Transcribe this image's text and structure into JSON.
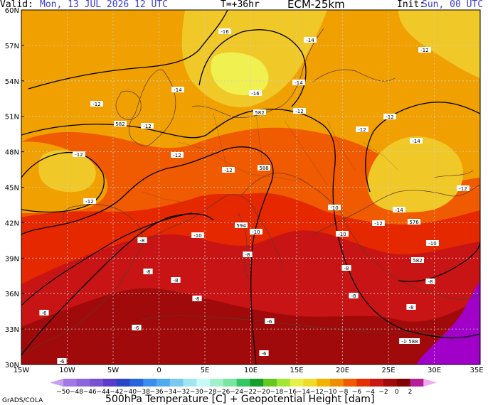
{
  "header": {
    "valid_label": "Valid:",
    "valid_value": "Mon, 13 JUL 2026  12 UTC",
    "forecast_step": "T=+36hr",
    "model": "ECM-25km",
    "init_label": "Init:",
    "init_value": "Sun, 00 UTC"
  },
  "map": {
    "lat_labels": [
      "60N",
      "57N",
      "54N",
      "51N",
      "48N",
      "45N",
      "42N",
      "39N",
      "36N",
      "33N",
      "30N"
    ],
    "lon_labels": [
      "15W",
      "10W",
      "5W",
      "0",
      "5E",
      "10E",
      "15E",
      "20E",
      "25E",
      "30E",
      "35E"
    ],
    "contour_labels_temp": [
      "-16",
      "-14",
      "-14",
      "-12",
      "-12",
      "-12",
      "-12",
      "-16",
      "-14",
      "-12",
      "-12",
      "-12",
      "-12",
      "-14",
      "-12",
      "-12",
      "-10",
      "-12",
      "-14",
      "-12",
      "-10",
      "-10",
      "-10",
      "-10",
      "-8",
      "-8",
      "-8",
      "-8",
      "-8",
      "-8",
      "-8",
      "-6",
      "-6",
      "-6",
      "-6",
      "-6",
      "-8",
      "-8",
      "-8",
      "-10"
    ],
    "height_labels": [
      "582",
      "582",
      "588",
      "594",
      "576",
      "582",
      "588"
    ],
    "colors": {
      "purple": "#a000c8",
      "deep_red": "#a00a0a",
      "red": "#c81414",
      "red_orange": "#e62800",
      "orange_red": "#f05a00",
      "orange": "#f08200",
      "light_orange": "#f0a000",
      "yellow_orange": "#f0c828",
      "yellow": "#f0f050"
    }
  },
  "colorbar": {
    "ticks": [
      "-50",
      "-48",
      "-46",
      "-44",
      "-42",
      "-40",
      "-38",
      "-36",
      "-34",
      "-32",
      "-30",
      "-28",
      "-26",
      "-24",
      "-22",
      "-20",
      "-18",
      "-16",
      "-14",
      "-12",
      "-10",
      "-8",
      "-6",
      "-4",
      "-2",
      "0",
      "2"
    ],
    "colors": [
      "#c8a0f0",
      "#a078e6",
      "#8c64dc",
      "#7850d2",
      "#5a3cc8",
      "#2846c8",
      "#2864dc",
      "#3c8cf0",
      "#50aaf0",
      "#78c8f0",
      "#a0e6f0",
      "#c8fafa",
      "#a0f0c8",
      "#78e6a0",
      "#32c864",
      "#14a028",
      "#64c81e",
      "#a0e632",
      "#e6f046",
      "#f0dc28",
      "#f0b400",
      "#f08c00",
      "#f05a00",
      "#e62d00",
      "#c81414",
      "#a00a0a",
      "#820000",
      "#b41e96",
      "#f0aaf0"
    ],
    "caption": "500hPa Temperature [C] + Geopotential Height [dam]"
  },
  "credit": "GrADS/COLA"
}
